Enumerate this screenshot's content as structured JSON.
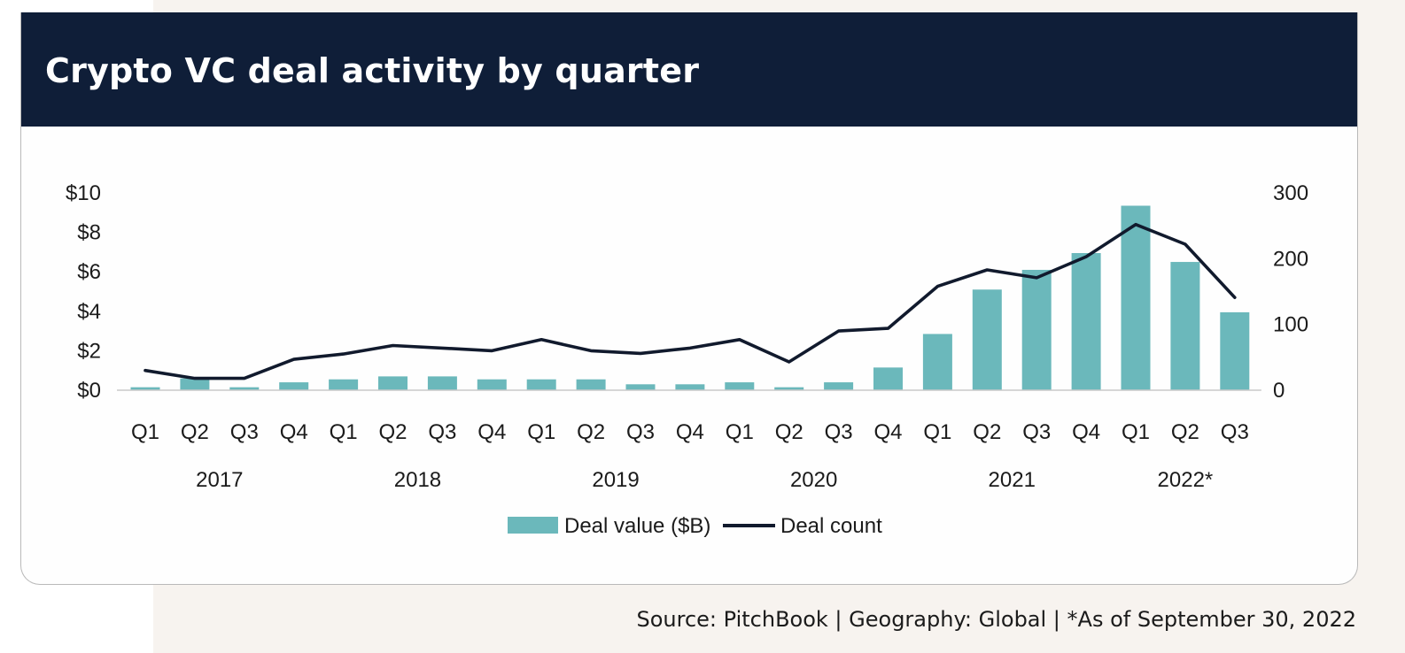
{
  "title": "Crypto VC deal activity by quarter",
  "source": "Source: PitchBook  |  Geography: Global  |  *As of September 30, 2022",
  "colors": {
    "bar": "#6bb8bb",
    "line": "#111a2d",
    "header": "#0f1e38"
  },
  "chart_data": {
    "type": "bar",
    "title": "Crypto VC deal activity by quarter",
    "categories": [
      "Q1",
      "Q2",
      "Q3",
      "Q4",
      "Q1",
      "Q2",
      "Q3",
      "Q4",
      "Q1",
      "Q2",
      "Q3",
      "Q4",
      "Q1",
      "Q2",
      "Q3",
      "Q4",
      "Q1",
      "Q2",
      "Q3",
      "Q4",
      "Q1",
      "Q2",
      "Q3"
    ],
    "year_groups": [
      {
        "label": "2017",
        "count": 4
      },
      {
        "label": "2018",
        "count": 4
      },
      {
        "label": "2019",
        "count": 4
      },
      {
        "label": "2020",
        "count": 4
      },
      {
        "label": "2021",
        "count": 4
      },
      {
        "label": "2022*",
        "count": 3
      }
    ],
    "series": [
      {
        "name": "Deal value ($B)",
        "type": "bar",
        "axis": "left",
        "values": [
          0.15,
          0.6,
          0.15,
          0.4,
          0.55,
          0.7,
          0.7,
          0.55,
          0.55,
          0.55,
          0.3,
          0.3,
          0.4,
          0.15,
          0.4,
          1.15,
          2.85,
          5.1,
          6.1,
          6.95,
          9.35,
          6.5,
          3.95
        ]
      },
      {
        "name": "Deal count",
        "type": "line",
        "axis": "right",
        "values": [
          30,
          18,
          18,
          47,
          55,
          68,
          64,
          60,
          77,
          60,
          56,
          64,
          77,
          43,
          90,
          94,
          158,
          183,
          171,
          203,
          252,
          222,
          141
        ]
      }
    ],
    "y_left": {
      "ylim": [
        0,
        10
      ],
      "ticks": [
        "$0",
        "$2",
        "$4",
        "$6",
        "$8",
        "$10"
      ]
    },
    "y_right": {
      "ylim": [
        0,
        300
      ],
      "ticks": [
        "0",
        "100",
        "200",
        "300"
      ]
    },
    "legend": {
      "position": "bottom-center",
      "items": [
        "Deal value ($B)",
        "Deal count"
      ]
    },
    "grid": false
  }
}
